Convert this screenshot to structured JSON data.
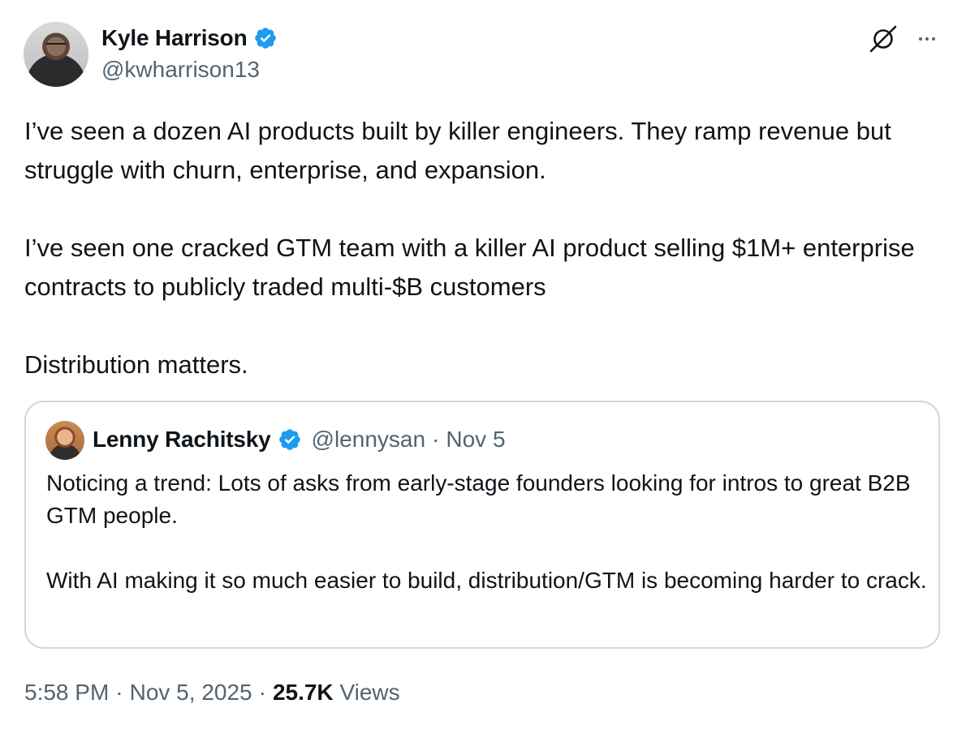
{
  "author": {
    "display_name": "Kyle Harrison",
    "handle": "@kwharrison13",
    "verified": true
  },
  "icons": {
    "verified": "verified-badge-icon",
    "grok": "grok-icon",
    "more": "more-options-icon"
  },
  "colors": {
    "verified_blue": "#1d9bf0",
    "secondary_text": "#536471",
    "border": "#cfd9de"
  },
  "tweet": {
    "paragraph_1": "I’ve seen a dozen AI products built by killer engineers. They ramp revenue but struggle with churn, enterprise, and expansion.",
    "paragraph_2": "I’ve seen one cracked GTM team with a killer AI product selling $1M+ enterprise contracts to publicly traded multi-$B customers",
    "paragraph_3": "Distribution matters."
  },
  "quote": {
    "display_name": "Lenny Rachitsky",
    "handle": "@lennysan",
    "separator": "·",
    "date": "Nov 5",
    "paragraph_1": "Noticing a trend: Lots of asks from early-stage founders looking for intros to great B2B GTM people.",
    "paragraph_2": "With AI making it so much easier to build, distribution/GTM is becoming harder to crack."
  },
  "footer": {
    "time": "5:58 PM",
    "separator_1": "·",
    "date": "Nov 5, 2025",
    "separator_2": "·",
    "views_count": "25.7K",
    "views_label": "Views"
  }
}
